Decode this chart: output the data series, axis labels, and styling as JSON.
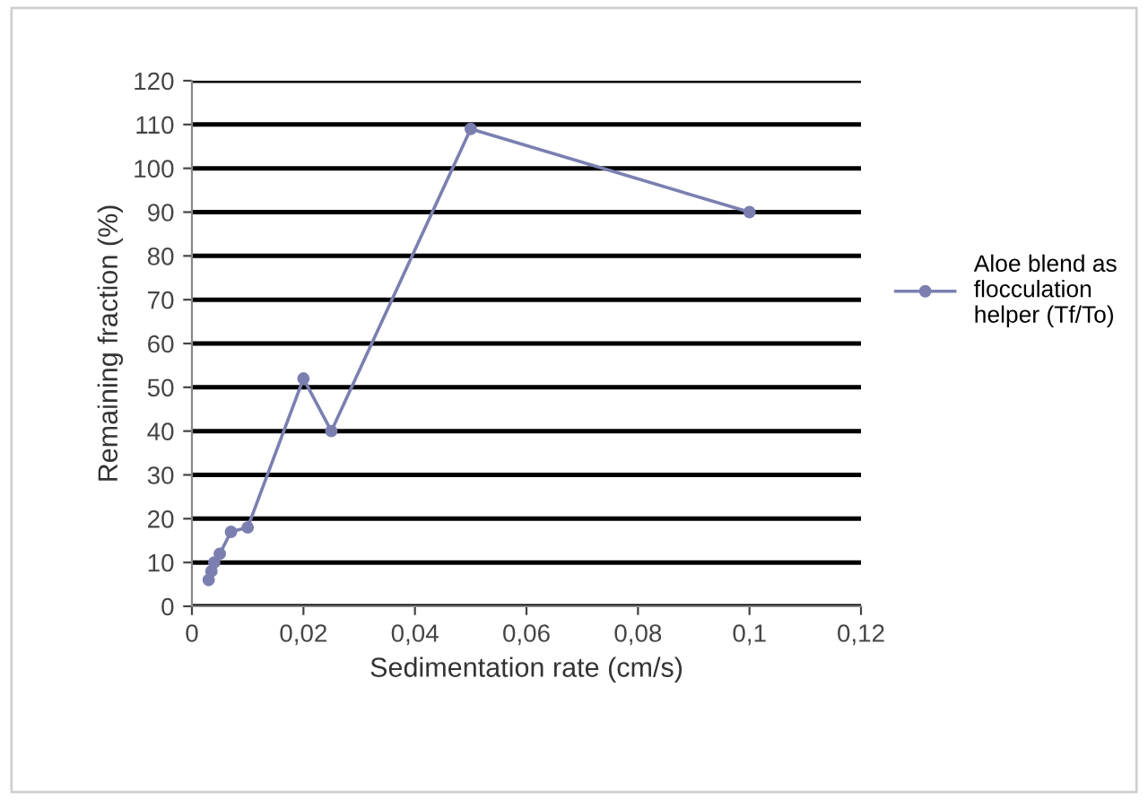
{
  "chart_data": {
    "type": "line",
    "xlabel": "Sedimentation rate (cm/s)",
    "ylabel": "Remaining fraction (%)",
    "series": [
      {
        "name": "Aloe blend as flocculation helper (Tf/To)",
        "color": "#7b7fb0",
        "x": [
          0.003,
          0.0035,
          0.004,
          0.005,
          0.007,
          0.01,
          0.02,
          0.025,
          0.05,
          0.1
        ],
        "values": [
          6,
          8,
          10,
          12,
          17,
          18,
          52,
          40,
          109,
          90
        ]
      }
    ],
    "xlim": [
      0,
      0.12
    ],
    "ylim": [
      0,
      120
    ],
    "xticks": [
      {
        "value": 0,
        "label": "0"
      },
      {
        "value": 0.02,
        "label": "0,02"
      },
      {
        "value": 0.04,
        "label": "0,04"
      },
      {
        "value": 0.06,
        "label": "0,06"
      },
      {
        "value": 0.08,
        "label": "0,08"
      },
      {
        "value": 0.1,
        "label": "0,1"
      },
      {
        "value": 0.12,
        "label": "0,12"
      }
    ],
    "yticks": [
      0,
      10,
      20,
      30,
      40,
      50,
      60,
      70,
      80,
      90,
      100,
      110,
      120
    ],
    "grid": "y",
    "legend": "right",
    "marker": "circle",
    "line_style": "solid"
  }
}
